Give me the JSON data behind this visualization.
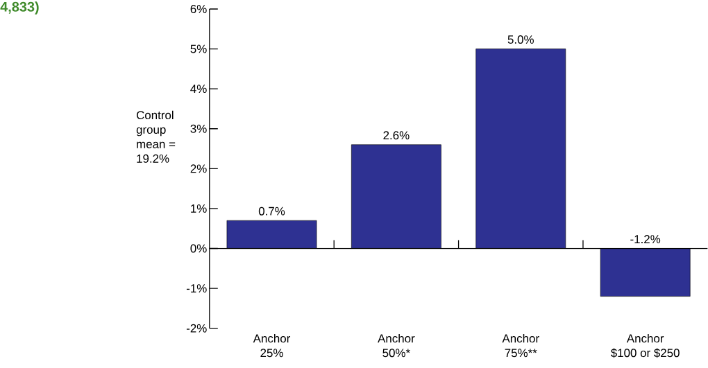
{
  "chart_data": {
    "type": "bar",
    "title": "4,833)",
    "annotations": [
      "Control group\nmean = 19.2%"
    ],
    "categories": [
      "Anchor\n25%",
      "Anchor\n50%*",
      "Anchor\n75%**",
      "Anchor\n$100 or $250"
    ],
    "values": [
      0.7,
      2.6,
      5.0,
      -1.2
    ],
    "color": "#2e3192",
    "value_labels": [
      "0.7%",
      "2.6%",
      "5.0%",
      "-1.2%"
    ],
    "ylim": [
      -2,
      6
    ],
    "yticks": [
      {
        "value": -2,
        "label": "-2%"
      },
      {
        "value": -1,
        "label": "-1%"
      },
      {
        "value": 0,
        "label": "0%"
      },
      {
        "value": 1,
        "label": "1%"
      },
      {
        "value": 2,
        "label": "2%"
      },
      {
        "value": 3,
        "label": "3%"
      },
      {
        "value": 4,
        "label": "4%"
      },
      {
        "value": 5,
        "label": "5%"
      },
      {
        "value": 6,
        "label": "6%"
      }
    ]
  }
}
